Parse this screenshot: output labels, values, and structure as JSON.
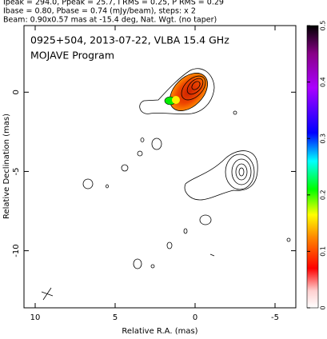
{
  "chart_data": {
    "type": "contour",
    "header": [
      "Ipeak = 294.0, Ppeak = 25.7, I RMS = 0.25, P RMS = 0.29",
      "Ibase = 0.80, Pbase = 0.74 (mJy/beam), steps: x 2",
      "Beam: 0.90x0.57 mas at -15.4 deg, Nat. Wgt. (no taper)"
    ],
    "title": "0925+504, 2013-07-22, VLBA 15.4 GHz",
    "subtitle": "MOJAVE Program",
    "xlabel": "Relative R.A. (mas)",
    "ylabel": "Relative Declination (mas)",
    "xlim": [
      10.7,
      -6.3
    ],
    "xticks": [
      10,
      5,
      0,
      -5
    ],
    "ylim": [
      -13.6,
      4.2
    ],
    "yticks": [
      0,
      -5,
      -10
    ],
    "colorbar_lim": [
      0,
      0.5
    ],
    "colorbar_ticks": [
      0,
      0.1,
      0.2,
      0.3,
      0.4,
      0.5
    ]
  }
}
